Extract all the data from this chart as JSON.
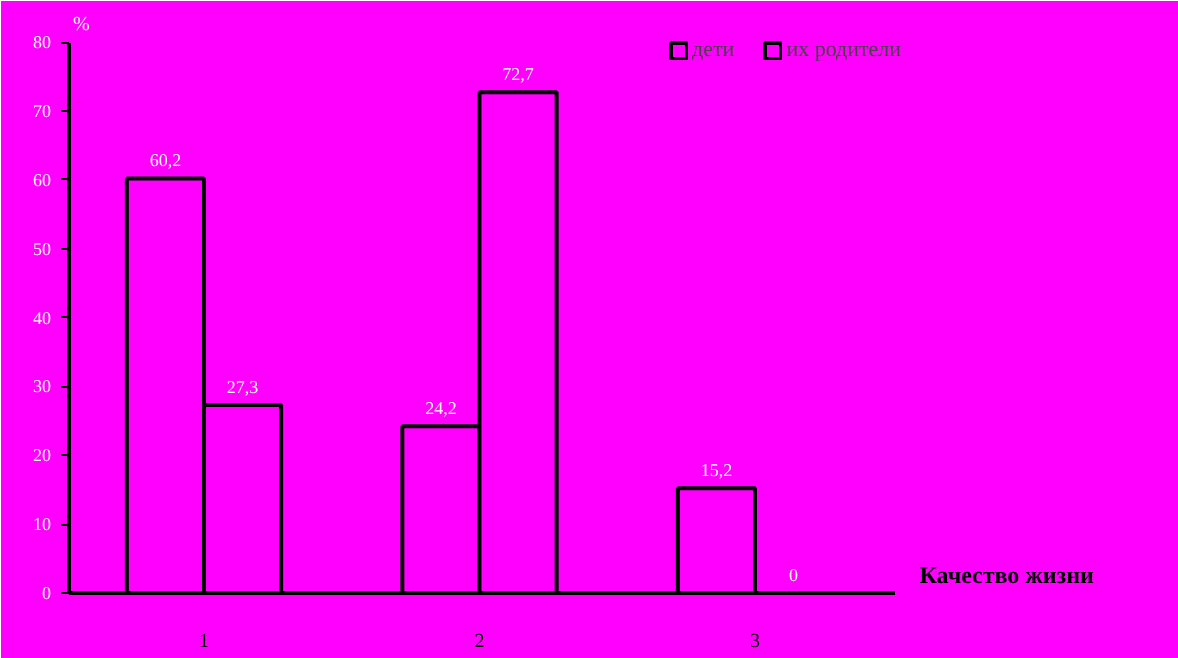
{
  "chart_data": {
    "type": "bar",
    "categories": [
      "1",
      "2",
      "3"
    ],
    "xlabel": "Качество жизни",
    "ylabel": "%",
    "series": [
      {
        "name": "дети",
        "color": "#000000",
        "values": [
          60.2,
          24.2,
          15.2
        ],
        "value_labels": [
          "60,2",
          "24,2",
          "15,2"
        ]
      },
      {
        "name": "их родители",
        "color": "#000000",
        "values": [
          27.3,
          72.7,
          0
        ],
        "value_labels": [
          "27,3",
          "72,7",
          "0"
        ]
      }
    ],
    "ylim": [
      0,
      80
    ],
    "yticks": [
      0,
      10,
      20,
      30,
      40,
      50,
      60,
      70,
      80
    ],
    "grid": false,
    "legend": "top right"
  }
}
